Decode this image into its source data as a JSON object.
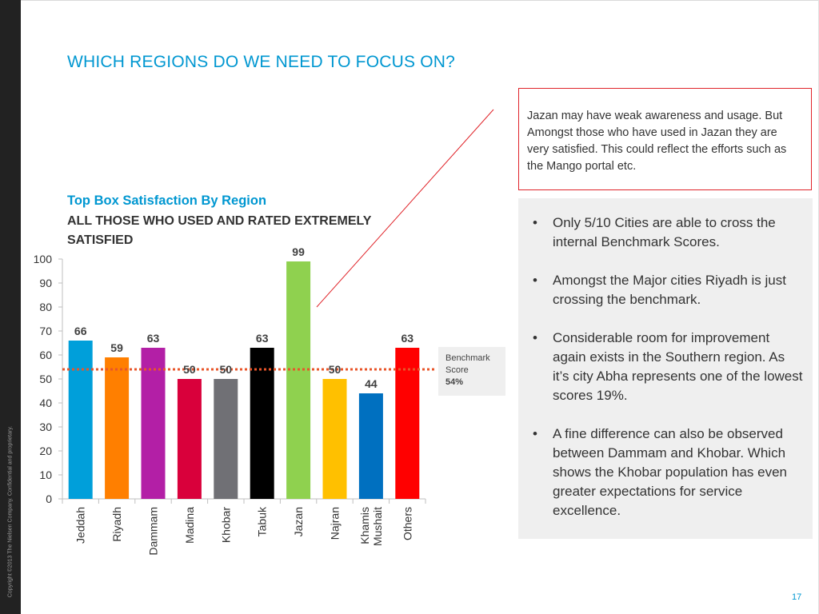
{
  "slide": {
    "title": "WHICH REGIONS DO WE NEED TO FOCUS ON?",
    "copyright": "Copyright ©2013 The Nielsen Company. Confidential and proprietary.",
    "page_number": "17"
  },
  "note": {
    "text": "Jazan may have weak awareness and usage. But Amongst those who have used in Jazan they are very satisfied. This could reflect the efforts such as the Mango portal etc."
  },
  "benchmark_box": {
    "label_line1": "Benchmark",
    "label_line2": "Score",
    "value": "54%"
  },
  "bullets": [
    "Only 5/10 Cities are able to cross the internal Benchmark Scores.",
    "Amongst the Major cities Riyadh is just crossing the benchmark.",
    "Considerable room for improvement again exists in the Southern region. As it’s city Abha represents one of the lowest scores 19%.",
    "A fine difference can also be observed between Dammam and Khobar. Which shows the Khobar population has even greater expectations for service excellence."
  ],
  "colors": {
    "accent": "#0097d1",
    "callout": "#e0242a",
    "benchmark_line": "#e8552a"
  },
  "chart_data": {
    "type": "bar",
    "title": "Top Box Satisfaction By Region",
    "subtitle": "ALL THOSE WHO USED AND RATED EXTREMELY SATISFIED",
    "categories": [
      "Jeddah",
      "Riyadh",
      "Dammam",
      "Madina",
      "Khobar",
      "Tabuk",
      "Jazan",
      "Najran",
      "Khamis Mushait",
      "Others"
    ],
    "category_lines": [
      [
        "Jeddah"
      ],
      [
        "Riyadh"
      ],
      [
        "Dammam"
      ],
      [
        "Madina"
      ],
      [
        "Khobar"
      ],
      [
        "Tabuk"
      ],
      [
        "Jazan"
      ],
      [
        "Najran"
      ],
      [
        "Khamis",
        "Mushait"
      ],
      [
        "Others"
      ]
    ],
    "values": [
      66,
      59,
      63,
      50,
      50,
      63,
      99,
      50,
      44,
      63
    ],
    "data_labels": [
      "66",
      "59",
      "63",
      "50",
      "50",
      "63",
      "99",
      "50",
      "44",
      "63"
    ],
    "bar_colors": [
      "#009fda",
      "#ff7f00",
      "#b31fa6",
      "#d9003b",
      "#707075",
      "#000000",
      "#8fd14f",
      "#ffc000",
      "#0070c0",
      "#ff0000"
    ],
    "benchmark": 54,
    "ylim": [
      0,
      100
    ],
    "yticks": [
      0,
      10,
      20,
      30,
      40,
      50,
      60,
      70,
      80,
      90,
      100
    ],
    "xlabel": "",
    "ylabel": "",
    "grid": false,
    "legend": "none"
  }
}
